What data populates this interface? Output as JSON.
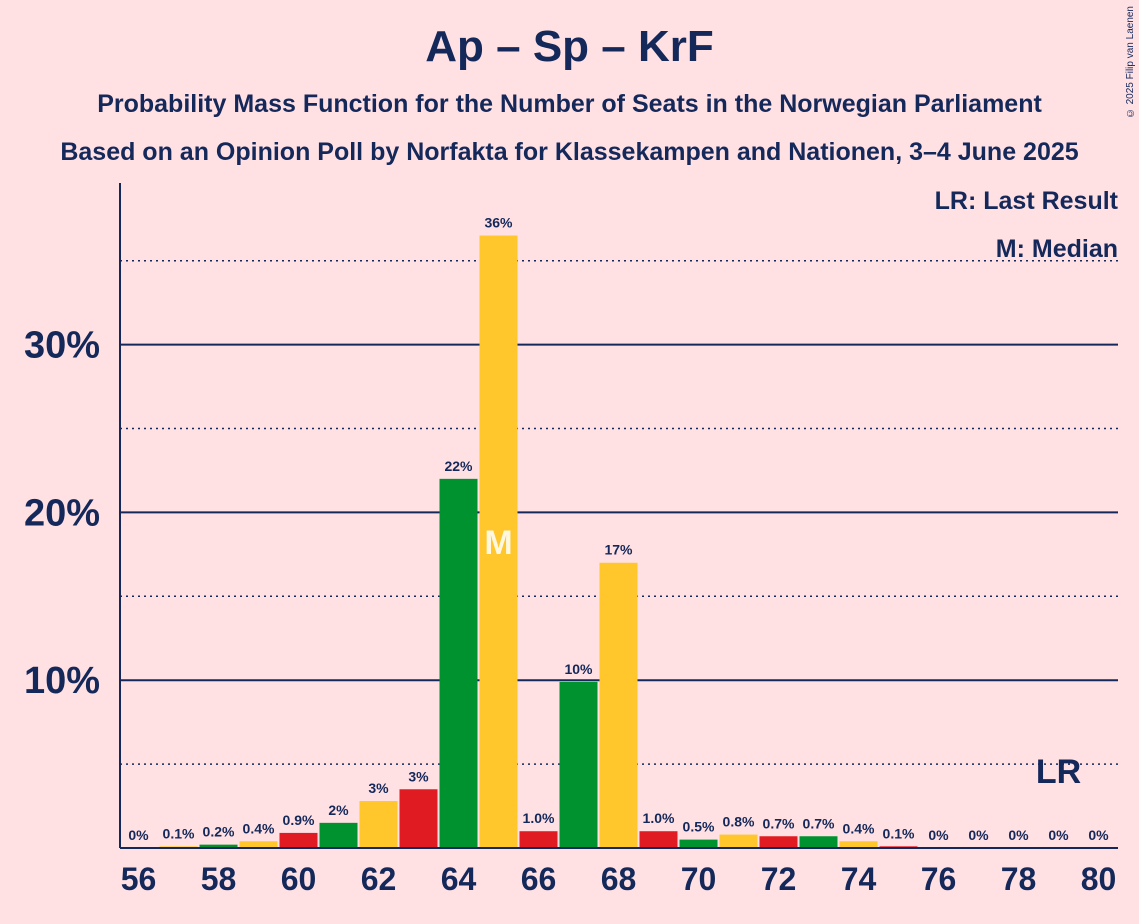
{
  "title": "Ap – Sp – KrF",
  "subtitle1": "Probability Mass Function for the Number of Seats in the Norwegian Parliament",
  "subtitle2": "Based on an Opinion Poll by Norfakta for Klassekampen and Nationen, 3–4 June 2025",
  "copyright": "© 2025 Filip van Laenen",
  "legend": {
    "lr": "LR: Last Result",
    "median": "M: Median"
  },
  "markers": {
    "median_label": "M",
    "median_seat": 65,
    "lr_label": "LR",
    "lr_seat": 79
  },
  "colors": {
    "green": "#00922E",
    "yellow": "#FFC72C",
    "red": "#E11B22",
    "navy": "#14285A",
    "background": "#FFE1E4"
  },
  "chart_data": {
    "type": "bar",
    "xlabel": "",
    "ylabel": "",
    "ylim": [
      0,
      39
    ],
    "yticks": [
      10,
      20,
      30
    ],
    "ytick_labels": [
      "10%",
      "20%",
      "30%"
    ],
    "minor_yticks": [
      5,
      15,
      25,
      35
    ],
    "xtick_labels": [
      "56",
      "58",
      "60",
      "62",
      "64",
      "66",
      "68",
      "70",
      "72",
      "74",
      "76",
      "78",
      "80"
    ],
    "seats": [
      56,
      57,
      58,
      59,
      60,
      61,
      62,
      63,
      64,
      65,
      66,
      67,
      68,
      69,
      70,
      71,
      72,
      73,
      74,
      75,
      76,
      77,
      78,
      79,
      80
    ],
    "values": [
      0,
      0.1,
      0.2,
      0.4,
      0.9,
      1.5,
      2.8,
      3.5,
      22.0,
      36.5,
      1.0,
      9.9,
      17.0,
      1.0,
      0.5,
      0.8,
      0.7,
      0.7,
      0.4,
      0.1,
      0,
      0,
      0,
      0,
      0
    ],
    "labels": [
      "0%",
      "0.1%",
      "0.2%",
      "0.4%",
      "0.9%",
      "2%",
      "3%",
      "3%",
      "22%",
      "36%",
      "1.0%",
      "10%",
      "17%",
      "1.0%",
      "0.5%",
      "0.8%",
      "0.7%",
      "0.7%",
      "0.4%",
      "0.1%",
      "0%",
      "0%",
      "0%",
      "0%",
      "0%"
    ],
    "bar_colors": [
      "green",
      "yellow",
      "green",
      "yellow",
      "red",
      "green",
      "yellow",
      "red",
      "green",
      "yellow",
      "red",
      "green",
      "yellow",
      "red",
      "green",
      "yellow",
      "red",
      "green",
      "yellow",
      "red",
      "green",
      "yellow",
      "red",
      "green",
      "yellow"
    ]
  }
}
